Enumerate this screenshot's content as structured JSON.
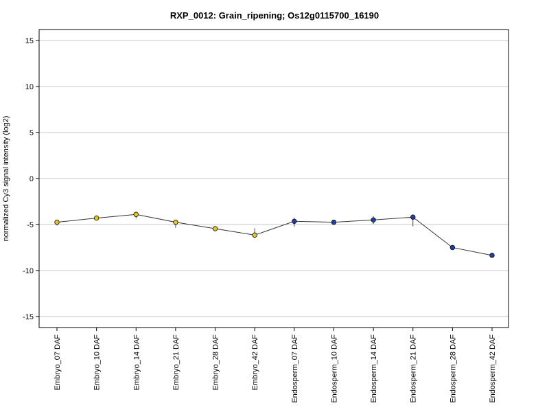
{
  "chart_data": {
    "type": "line",
    "title": "RXP_0012: Grain_ripening; Os12g0115700_16190",
    "xlabel": "",
    "ylabel": "normalized Cy3 signal intensity (log2)",
    "ylim": [
      -16.2,
      16.2
    ],
    "yticks": [
      15,
      10,
      5,
      0,
      -5,
      -10,
      -15
    ],
    "ytick_labels": [
      "15",
      "10",
      "5",
      "0",
      "-5",
      "-10",
      "-15"
    ],
    "grid": "horizontal",
    "categories": [
      "Embryo_07 DAF",
      "Embryo_10 DAF",
      "Embryo_14 DAF",
      "Embryo_21 DAF",
      "Embryo_28 DAF",
      "Embryo_42 DAF",
      "Endosperm_07 DAF",
      "Endosperm_10 DAF",
      "Endosperm_14 DAF",
      "Endosperm_21 DAF",
      "Endosperm_28 DAF",
      "Endosperm_42 DAF"
    ],
    "values": [
      -4.75,
      -4.3,
      -3.9,
      -4.75,
      -5.45,
      -6.15,
      -4.65,
      -4.75,
      -4.5,
      -4.2,
      -7.5,
      -8.35
    ],
    "error_low": [
      -5.1,
      -4.4,
      -4.35,
      -5.35,
      -5.55,
      -6.3,
      -5.25,
      -5.0,
      -4.95,
      -5.2,
      -7.6,
      -8.4
    ],
    "error_high": [
      -4.55,
      -4.2,
      -3.7,
      -4.5,
      -5.35,
      -5.4,
      -4.25,
      -4.5,
      -4.1,
      -4.0,
      -7.4,
      -8.3
    ],
    "point_colors": [
      "#e6c619",
      "#e6c619",
      "#e6c619",
      "#e6c619",
      "#e6c619",
      "#e6c619",
      "#1f3fa8",
      "#1f3fa8",
      "#1f3fa8",
      "#1f3fa8",
      "#1f3fa8",
      "#1f3fa8"
    ],
    "line_color": "#333333",
    "grid_color": "#c8c8c8"
  }
}
